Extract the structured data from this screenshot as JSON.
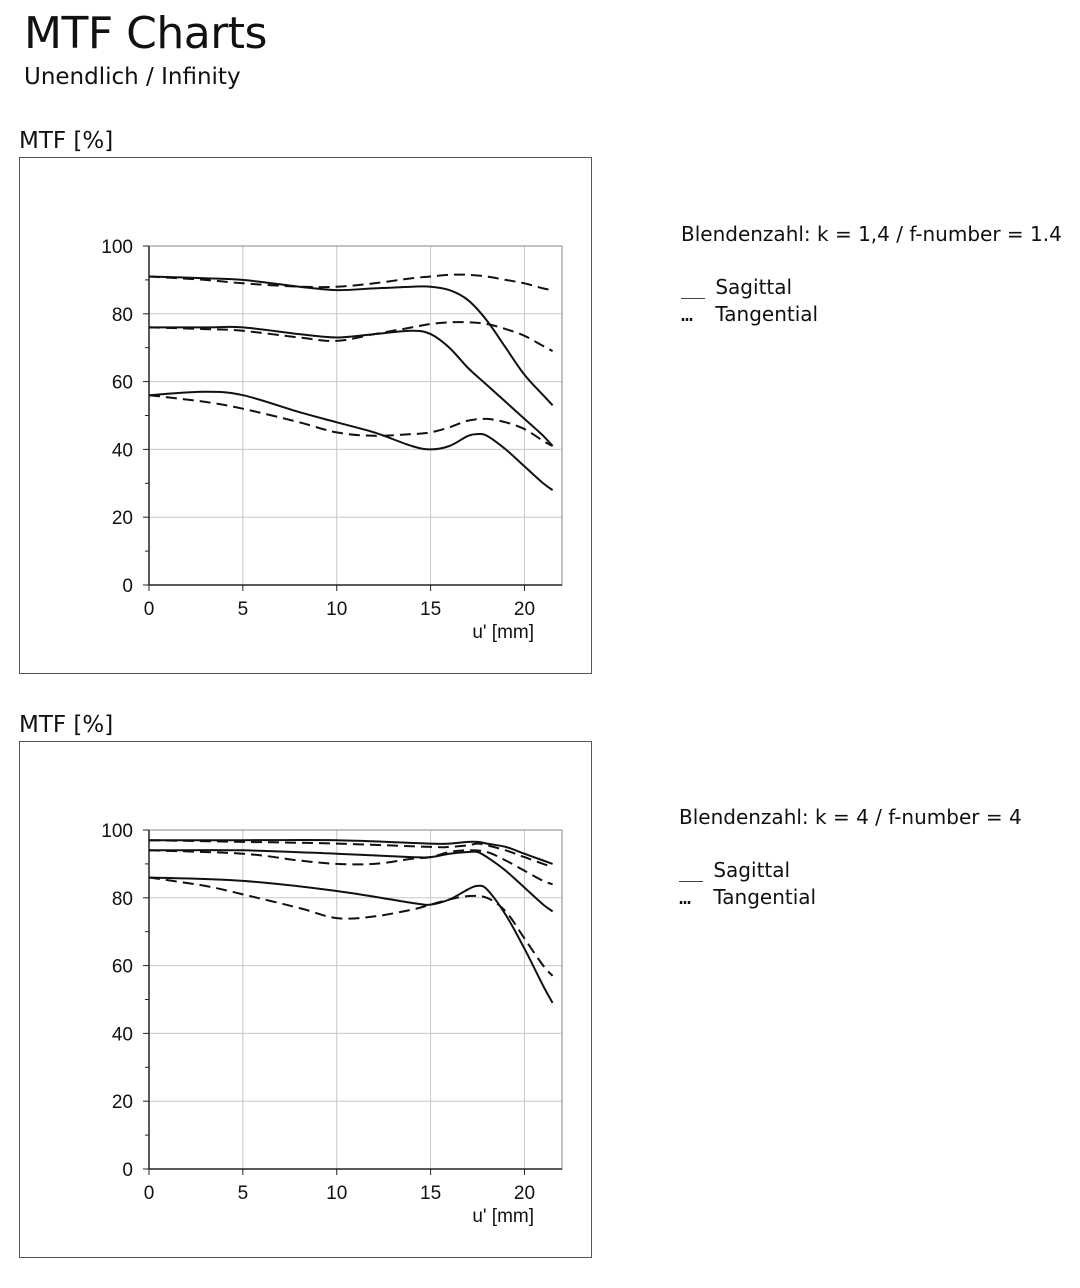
{
  "header": {
    "title": "MTF Charts",
    "subtitle": "Unendlich / Infinity"
  },
  "legend": {
    "sagittal_marker": "__",
    "sagittal_label": "Sagittal",
    "tangential_marker": "…",
    "tangential_label": "Tangential"
  },
  "chart_data": [
    {
      "type": "line",
      "ylabel": "MTF [%]",
      "xlabel": "u' [mm]",
      "caption": "Blendenzahl: k = 1,4 / f-number = 1.4",
      "xlim": [
        0,
        22
      ],
      "ylim": [
        0,
        100
      ],
      "xticks": [
        0,
        5,
        10,
        15,
        20
      ],
      "yticks": [
        0,
        20,
        40,
        60,
        80,
        100
      ],
      "grid": true,
      "series": [
        {
          "style": "sagittal",
          "x": [
            0,
            3,
            5,
            8,
            10,
            12,
            14,
            15,
            16,
            17,
            18,
            19,
            20,
            21,
            21.5
          ],
          "y": [
            91,
            90.5,
            90,
            88,
            87,
            87.5,
            88,
            88,
            87,
            84,
            78,
            70,
            62,
            56,
            53
          ]
        },
        {
          "style": "tangential",
          "x": [
            0,
            3,
            5,
            8,
            10,
            12,
            14,
            15,
            16,
            17,
            18,
            19,
            20,
            21,
            21.5
          ],
          "y": [
            91,
            90,
            89,
            88,
            88,
            89,
            90.5,
            91,
            91.5,
            91.5,
            91,
            90,
            89,
            87.5,
            87
          ]
        },
        {
          "style": "sagittal",
          "x": [
            0,
            3,
            5,
            8,
            10,
            12,
            14,
            15,
            16,
            17,
            18,
            19,
            20,
            21,
            21.5
          ],
          "y": [
            76,
            76,
            76,
            74,
            73,
            74,
            75,
            74,
            70,
            64,
            59,
            54,
            49,
            44,
            41
          ]
        },
        {
          "style": "tangential",
          "x": [
            0,
            3,
            5,
            8,
            10,
            12,
            14,
            15,
            16,
            17,
            18,
            19,
            20,
            21,
            21.5
          ],
          "y": [
            76,
            75.5,
            75,
            73,
            72,
            74,
            76,
            77,
            77.5,
            77.5,
            77,
            75.5,
            73.5,
            70.5,
            69
          ]
        },
        {
          "style": "sagittal",
          "x": [
            0,
            3,
            5,
            8,
            10,
            12,
            14,
            15,
            16,
            17,
            17.5,
            18,
            19,
            20,
            21,
            21.5
          ],
          "y": [
            56,
            57,
            56,
            51,
            48,
            45,
            41,
            40,
            41,
            44,
            44.5,
            44,
            40,
            35,
            30,
            28
          ]
        },
        {
          "style": "tangential",
          "x": [
            0,
            3,
            5,
            8,
            10,
            12,
            14,
            15,
            16,
            17,
            18,
            19,
            20,
            21,
            21.5
          ],
          "y": [
            56,
            54,
            52,
            48,
            45,
            44,
            44.5,
            45,
            46.5,
            48.5,
            49,
            48,
            46,
            42.5,
            41
          ]
        }
      ]
    },
    {
      "type": "line",
      "ylabel": "MTF [%]",
      "xlabel": "u' [mm]",
      "caption": "Blendenzahl: k = 4 / f-number = 4",
      "xlim": [
        0,
        22
      ],
      "ylim": [
        0,
        100
      ],
      "xticks": [
        0,
        5,
        10,
        15,
        20
      ],
      "yticks": [
        0,
        20,
        40,
        60,
        80,
        100
      ],
      "grid": true,
      "series": [
        {
          "style": "sagittal",
          "x": [
            0,
            5,
            10,
            15,
            16,
            17,
            17.5,
            18,
            19,
            20,
            21,
            21.5
          ],
          "y": [
            97,
            97,
            97,
            96,
            96,
            96.5,
            96.5,
            96,
            95,
            93,
            91,
            90
          ]
        },
        {
          "style": "tangential",
          "x": [
            0,
            5,
            10,
            15,
            16,
            17,
            17.5,
            18,
            19,
            20,
            21,
            21.5
          ],
          "y": [
            97,
            96.5,
            96,
            95,
            95,
            95.5,
            96,
            95.5,
            94,
            92,
            90,
            89
          ]
        },
        {
          "style": "sagittal",
          "x": [
            0,
            5,
            10,
            14,
            15,
            16,
            17,
            17.5,
            18,
            19,
            20,
            21,
            21.5
          ],
          "y": [
            94,
            94,
            93,
            92,
            92,
            93,
            93.5,
            93.5,
            92,
            88,
            83,
            78,
            76
          ]
        },
        {
          "style": "tangential",
          "x": [
            0,
            5,
            8,
            10,
            12,
            14,
            15,
            16,
            17,
            18,
            19,
            20,
            21,
            21.5
          ],
          "y": [
            94,
            93,
            91,
            90,
            90,
            91.5,
            92,
            93.5,
            94,
            93.5,
            91,
            88,
            85,
            84
          ]
        },
        {
          "style": "sagittal",
          "x": [
            0,
            5,
            10,
            14,
            15,
            16,
            17,
            17.5,
            18,
            19,
            20,
            21,
            21.5
          ],
          "y": [
            86,
            85,
            82,
            78.5,
            78,
            79.5,
            82.5,
            83.5,
            82.5,
            75,
            65,
            54,
            49
          ]
        },
        {
          "style": "tangential",
          "x": [
            0,
            3,
            5,
            8,
            10,
            12,
            14,
            15,
            16,
            17,
            18,
            19,
            20,
            21,
            21.5
          ],
          "y": [
            86,
            83.5,
            81,
            77,
            74,
            74.5,
            76.5,
            78,
            79.5,
            80.5,
            80,
            76,
            68,
            60,
            57
          ]
        }
      ]
    }
  ]
}
